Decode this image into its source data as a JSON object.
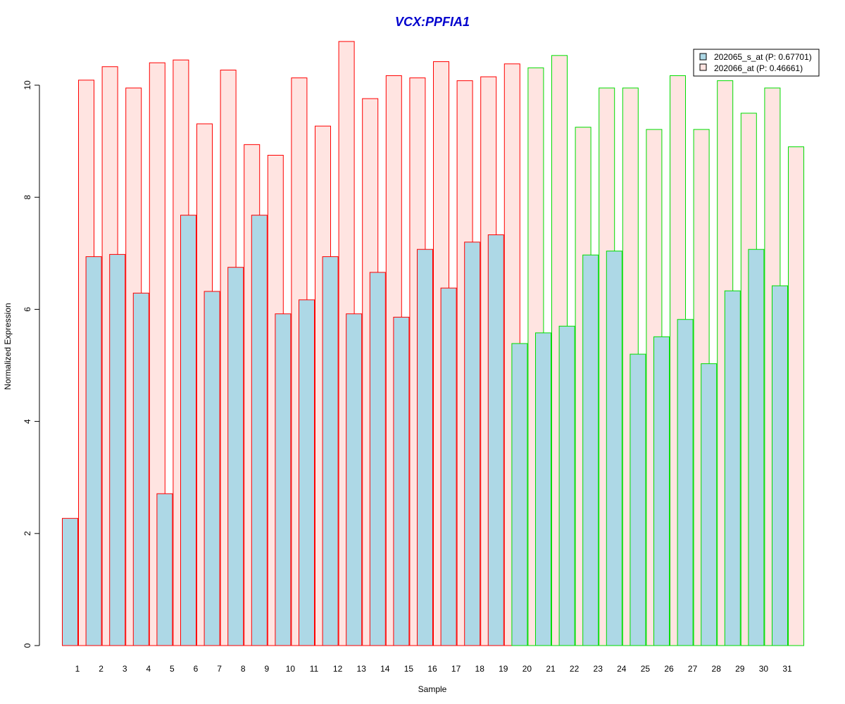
{
  "chart_data": {
    "type": "bar",
    "title": "VCX:PPFIA1",
    "xlabel": "Sample",
    "ylabel": "Normalized Expression",
    "categories": [
      "1",
      "2",
      "3",
      "4",
      "5",
      "6",
      "7",
      "8",
      "9",
      "10",
      "11",
      "12",
      "13",
      "14",
      "15",
      "16",
      "17",
      "18",
      "19",
      "20",
      "21",
      "22",
      "23",
      "24",
      "25",
      "26",
      "27",
      "28",
      "29",
      "30",
      "31"
    ],
    "ylim": [
      0,
      10.8
    ],
    "yticks": [
      0,
      2,
      4,
      6,
      8,
      10
    ],
    "series": [
      {
        "name": "202065_s_at (P: 0.67701)",
        "fill": "#add8e6",
        "values": [
          2.27,
          6.94,
          6.98,
          6.29,
          2.71,
          7.68,
          6.32,
          6.75,
          7.68,
          5.92,
          6.17,
          6.94,
          5.92,
          6.66,
          5.86,
          7.07,
          6.38,
          7.2,
          7.33,
          5.39,
          5.58,
          5.7,
          6.97,
          7.04,
          5.2,
          5.51,
          5.82,
          5.03,
          6.33,
          7.07,
          6.42
        ]
      },
      {
        "name": "202066_at (P: 0.46661)",
        "fill": "#ffe4e1",
        "values": [
          10.09,
          10.33,
          9.95,
          10.4,
          10.45,
          9.31,
          10.27,
          8.94,
          8.75,
          10.13,
          9.27,
          10.78,
          9.76,
          10.17,
          10.13,
          10.42,
          10.08,
          10.15,
          10.38,
          10.31,
          10.53,
          9.25,
          9.95,
          9.95,
          9.21,
          10.17,
          9.21,
          10.08,
          9.5,
          9.95,
          8.9
        ]
      }
    ],
    "group_colors": {
      "red": "#ff0000",
      "green": "#00dd00"
    },
    "group_a_count": 19,
    "legend_position": "top-right",
    "grid": false
  }
}
